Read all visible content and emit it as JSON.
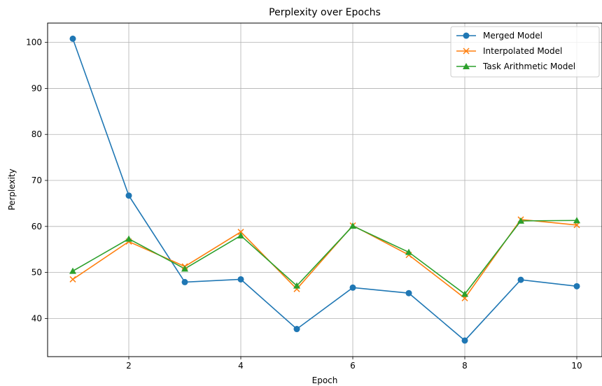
{
  "chart_data": {
    "type": "line",
    "title": "Perplexity over Epochs",
    "xlabel": "Epoch",
    "ylabel": "Perplexity",
    "x": [
      1,
      2,
      3,
      4,
      5,
      6,
      7,
      8,
      9,
      10
    ],
    "xlim": [
      0.55,
      10.45
    ],
    "ylim": [
      31.7,
      104.2
    ],
    "xticks": [
      2,
      4,
      6,
      8,
      10
    ],
    "yticks": [
      40,
      50,
      60,
      70,
      80,
      90,
      100
    ],
    "grid": true,
    "legend_position": "top-right",
    "series": [
      {
        "name": "Merged Model",
        "color": "#1f77b4",
        "marker": "circle",
        "values": [
          100.8,
          66.7,
          47.9,
          48.5,
          37.7,
          46.7,
          45.5,
          35.2,
          48.4,
          47.0
        ]
      },
      {
        "name": "Interpolated Model",
        "color": "#ff7f0e",
        "marker": "x",
        "values": [
          48.5,
          56.7,
          51.3,
          58.8,
          46.4,
          60.2,
          53.8,
          44.4,
          61.5,
          60.3
        ]
      },
      {
        "name": "Task Arithmetic Model",
        "color": "#2ca02c",
        "marker": "triangle",
        "values": [
          50.3,
          57.3,
          50.8,
          58.0,
          47.1,
          60.1,
          54.4,
          45.3,
          61.2,
          61.3
        ]
      }
    ]
  }
}
